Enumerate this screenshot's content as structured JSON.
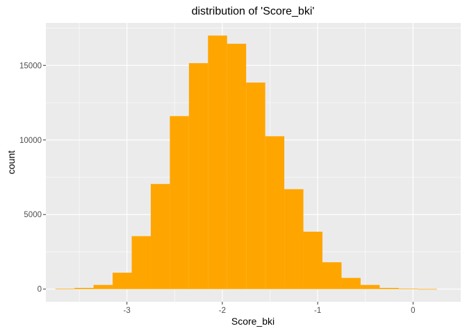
{
  "chart_data": {
    "type": "bar",
    "title": "distribution of 'Score_bki'",
    "xlabel": "Score_bki",
    "ylabel": "count",
    "grid": true,
    "legend": "none",
    "xlim": [
      -3.85,
      0.5
    ],
    "ylim": [
      -850,
      17850
    ],
    "x_ticks": [
      -3,
      -2,
      -1,
      0
    ],
    "x_tick_labels": [
      "-3",
      "-2",
      "-1",
      "0"
    ],
    "x_minor_ticks": [
      -3.5,
      -2.5,
      -1.5,
      -0.5
    ],
    "y_ticks": [
      0,
      5000,
      10000,
      15000
    ],
    "y_tick_labels": [
      "0",
      "5000",
      "10000",
      "15000"
    ],
    "y_minor_ticks": [
      2500,
      7500,
      12500,
      17500
    ],
    "bin_width": 0.2,
    "bin_starts": [
      -3.75,
      -3.55,
      -3.35,
      -3.15,
      -2.95,
      -2.75,
      -2.55,
      -2.35,
      -2.15,
      -1.95,
      -1.75,
      -1.55,
      -1.35,
      -1.15,
      -0.95,
      -0.75,
      -0.55,
      -0.35,
      -0.15,
      0.05
    ],
    "values": [
      20,
      80,
      280,
      1100,
      3550,
      7050,
      11600,
      15150,
      17000,
      16450,
      13850,
      10250,
      6700,
      3850,
      1800,
      750,
      280,
      80,
      30,
      10
    ],
    "bar_color": "#FFA500",
    "panel_background": "#EBEBEB",
    "grid_color": "#FFFFFF"
  }
}
